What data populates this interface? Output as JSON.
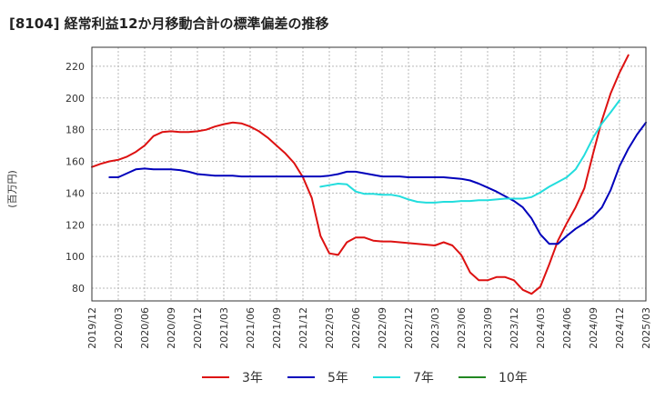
{
  "chart_data": {
    "type": "line",
    "title": "[8104]  経常利益12か月移動合計の標準偏差の推移",
    "ylabel": "(百万円)",
    "xlabel": "",
    "ylim": [
      72,
      232
    ],
    "yticks": [
      80,
      100,
      120,
      140,
      160,
      180,
      200,
      220
    ],
    "x_start": "2019-12",
    "x_end": "2025-03",
    "xtick_labels": [
      "2019/12",
      "2020/03",
      "2020/06",
      "2020/09",
      "2020/12",
      "2021/03",
      "2021/06",
      "2021/09",
      "2021/12",
      "2022/03",
      "2022/06",
      "2022/09",
      "2022/12",
      "2023/03",
      "2023/06",
      "2023/09",
      "2023/12",
      "2024/03",
      "2024/06",
      "2024/09",
      "2024/12",
      "2025/03"
    ],
    "grid": true,
    "legend_position": "bottom",
    "series": [
      {
        "name": "3年",
        "color": "#dd1111",
        "start": "2019-12",
        "values": [
          156.5,
          158.5,
          160,
          161,
          163,
          166,
          170,
          176,
          178.5,
          179,
          178.5,
          178.5,
          179,
          180,
          182,
          183.5,
          184.5,
          184,
          182,
          179,
          175,
          170,
          165,
          159,
          150,
          137,
          113,
          102,
          101,
          109,
          112,
          112,
          110,
          109.5,
          109.5,
          109,
          108.5,
          108,
          107.5,
          107,
          109,
          107,
          101,
          90,
          85,
          85,
          87,
          87,
          85,
          79,
          76.5,
          81,
          95,
          110,
          121,
          131,
          143,
          165,
          186,
          203,
          216,
          227
        ]
      },
      {
        "name": "5年",
        "color": "#0000bb",
        "start": "2020-02",
        "values": [
          150,
          150,
          152.5,
          155,
          155.5,
          155,
          155,
          155,
          154.5,
          153.5,
          152,
          151.5,
          151,
          151,
          151,
          150.5,
          150.5,
          150.5,
          150.5,
          150.5,
          150.5,
          150.5,
          150.5,
          150.5,
          150.5,
          151,
          152,
          153.5,
          153.5,
          152.5,
          151.5,
          150.5,
          150.5,
          150.5,
          150,
          150,
          150,
          150,
          150,
          149.5,
          149,
          148,
          146,
          143.5,
          141,
          138,
          135,
          131,
          124,
          114,
          108,
          108,
          113,
          117.5,
          121,
          125,
          131,
          142,
          157,
          168,
          177,
          184.5
        ]
      },
      {
        "name": "7年",
        "color": "#22dddd",
        "start": "2022-02",
        "values": [
          144,
          145,
          146,
          145.5,
          141,
          139.5,
          139.5,
          139,
          139,
          138,
          136,
          134.5,
          134,
          134,
          134.5,
          134.5,
          135,
          135,
          135.5,
          135.5,
          136,
          136.5,
          136.5,
          136.5,
          137.5,
          140.5,
          144,
          147,
          150,
          155,
          164,
          175,
          184,
          191,
          198.5
        ]
      },
      {
        "name": "10年",
        "color": "#228822",
        "start": "2025-03",
        "values": []
      }
    ]
  }
}
